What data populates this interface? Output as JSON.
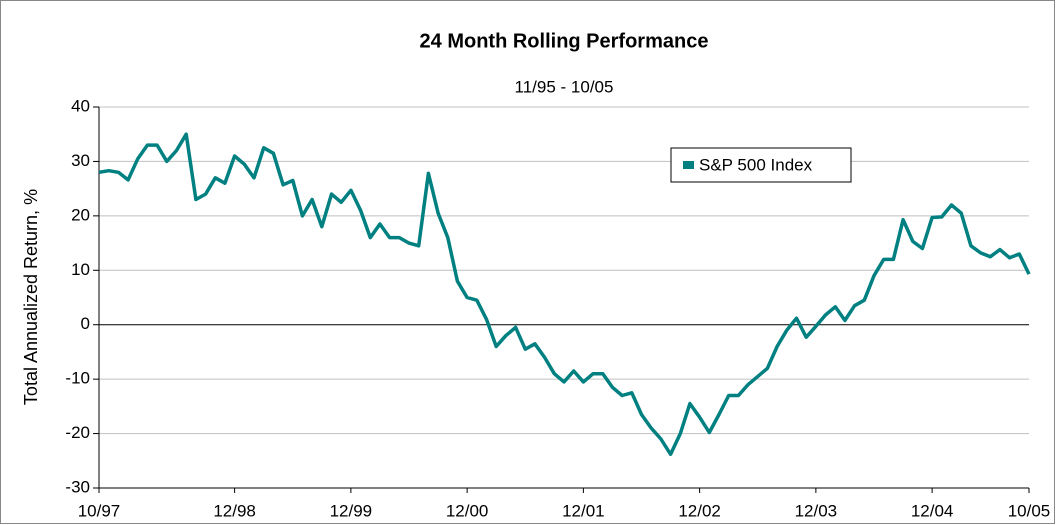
{
  "chart_data": {
    "type": "line",
    "title": "24 Month Rolling Performance",
    "subtitle": "11/95 - 10/05",
    "y_label": "Total Annualized Return, %",
    "categories": [
      "10/97",
      null,
      null,
      null,
      null,
      null,
      null,
      null,
      null,
      null,
      null,
      null,
      null,
      null,
      "12/98",
      null,
      null,
      null,
      null,
      null,
      null,
      null,
      null,
      null,
      null,
      null,
      "12/99",
      null,
      null,
      null,
      null,
      null,
      null,
      null,
      null,
      null,
      null,
      null,
      "12/00",
      null,
      null,
      null,
      null,
      null,
      null,
      null,
      null,
      null,
      null,
      null,
      "12/01",
      null,
      null,
      null,
      null,
      null,
      null,
      null,
      null,
      null,
      null,
      null,
      "12/02",
      null,
      null,
      null,
      null,
      null,
      null,
      null,
      null,
      null,
      null,
      null,
      "12/03",
      null,
      null,
      null,
      null,
      null,
      null,
      null,
      null,
      null,
      null,
      null,
      "12/04",
      null,
      null,
      null,
      null,
      null,
      null,
      null,
      null,
      null,
      "10/05"
    ],
    "series": [
      {
        "name": "S&P 500 Index",
        "color": "#008080",
        "values": [
          28,
          28.3,
          28,
          26.6,
          30.5,
          33,
          33,
          30,
          32,
          35,
          23,
          24,
          27,
          26,
          31,
          29.5,
          27,
          32.5,
          31.5,
          25.7,
          26.5,
          20,
          23,
          18,
          24,
          22.5,
          24.7,
          21,
          16,
          18.5,
          16,
          16,
          15,
          14.5,
          27.8,
          20.5,
          16,
          8,
          5,
          4.5,
          1,
          -4,
          -2,
          -0.5,
          -4.5,
          -3.5,
          -6,
          -9,
          -10.5,
          -8.5,
          -10.5,
          -9,
          -9,
          -11.5,
          -13,
          -12.5,
          -16.5,
          -19,
          -21,
          -23.8,
          -20,
          -14.5,
          -17,
          -19.8,
          -16.5,
          -13,
          -13,
          -11,
          -9.5,
          -8,
          -4,
          -1,
          1.2,
          -2.3,
          -0.3,
          1.8,
          3.3,
          0.8,
          3.5,
          4.5,
          9,
          12,
          12,
          19.3,
          15.3,
          14,
          19.7,
          19.8,
          22,
          20.5,
          14.5,
          13.2,
          12.5,
          13.8,
          12.3,
          13,
          9.3
        ]
      }
    ],
    "ylim": [
      -30,
      40
    ],
    "yticks": [
      -30,
      -20,
      -10,
      0,
      10,
      20,
      30,
      40
    ],
    "grid": true,
    "legend": "upper-right"
  }
}
